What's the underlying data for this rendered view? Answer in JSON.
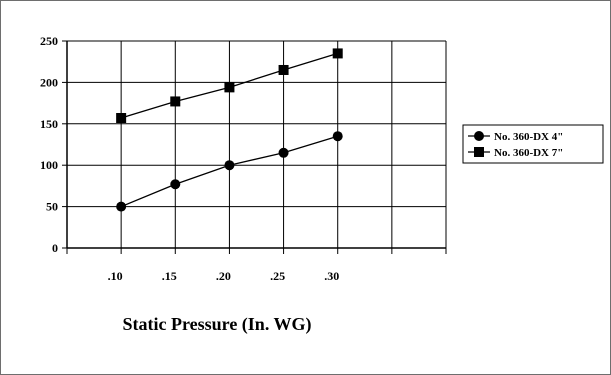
{
  "chart_data": {
    "type": "line",
    "title": "",
    "xlabel": "Static Pressure (In. WG)",
    "ylabel": "",
    "categories": [
      ".10",
      ".15",
      ".20",
      ".25",
      ".30"
    ],
    "ylim": [
      0,
      250
    ],
    "yticks": [
      "0",
      "50",
      "100",
      "150",
      "200",
      "250"
    ],
    "grid": true,
    "legend_position": "right",
    "series": [
      {
        "name": "No. 360-DX 4\"",
        "marker": "circle",
        "values": [
          50,
          77,
          100,
          115,
          135
        ],
        "color": "#000000"
      },
      {
        "name": "No. 360-DX 7\"",
        "marker": "square",
        "values": [
          157,
          177,
          194,
          215,
          235
        ],
        "color": "#000000"
      }
    ]
  }
}
